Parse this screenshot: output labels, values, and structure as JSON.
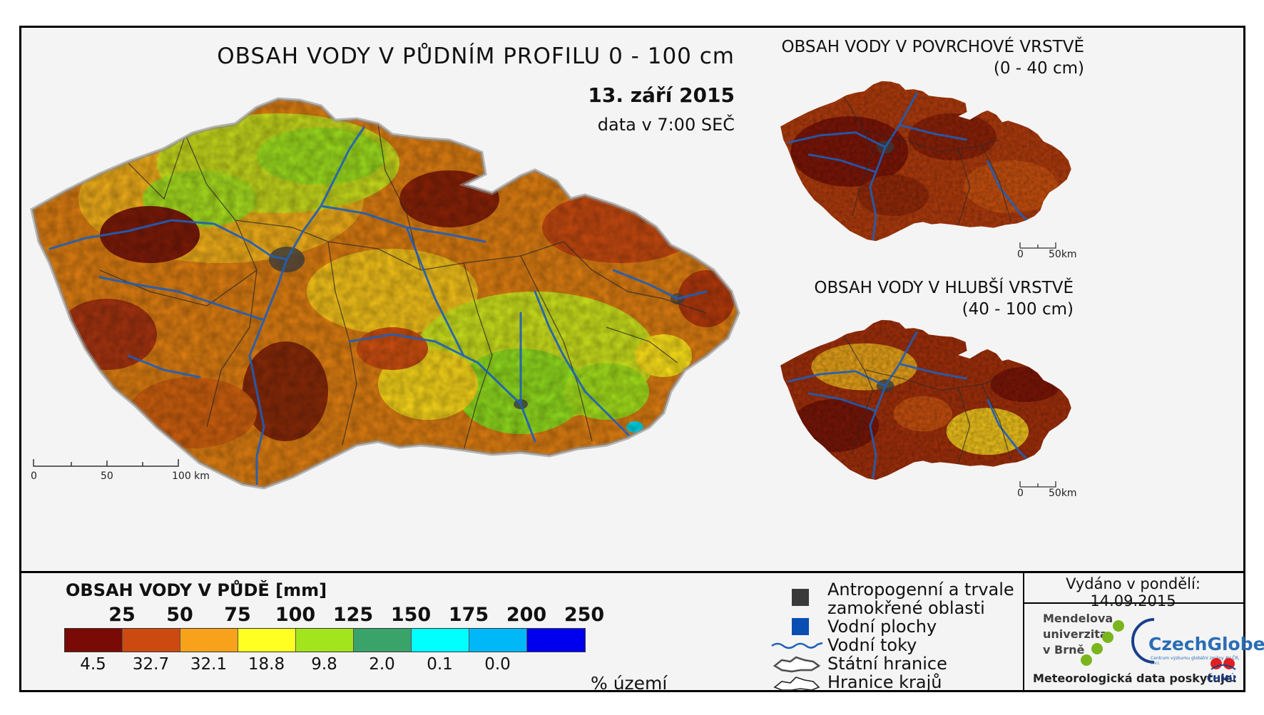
{
  "main_map": {
    "title": "OBSAH VODY V PŮDNÍM PROFILU 0 - 100 cm",
    "date": "13. září 2015",
    "subtitle": "data v 7:00 SEČ",
    "scale_labels": [
      "0",
      "50",
      "100 km"
    ]
  },
  "inset_top": {
    "title_line1": "OBSAH VODY V POVRCHOVÉ VRSTVĚ",
    "title_line2": "(0 - 40 cm)",
    "scale_labels": [
      "0",
      "50km"
    ]
  },
  "inset_bottom": {
    "title_line1": "OBSAH VODY V HLUBŠÍ VRSTVĚ",
    "title_line2": "(40 - 100 cm)",
    "scale_labels": [
      "0",
      "50km"
    ]
  },
  "legend": {
    "title": "OBSAH VODY V PŮDĚ [mm]",
    "class_breaks": [
      "25",
      "50",
      "75",
      "100",
      "125",
      "150",
      "175",
      "200",
      "250"
    ],
    "colors": [
      "#7a0a05",
      "#cc4a10",
      "#f7a21a",
      "#ffff22",
      "#a3e51c",
      "#3aa36a",
      "#00ffff",
      "#00b7f7",
      "#0000ee"
    ],
    "percentages": [
      "4.5",
      "32.7",
      "32.1",
      "18.8",
      "9.8",
      "2.0",
      "0.1",
      "0.0"
    ],
    "percent_unit": "% území"
  },
  "symbols": {
    "anthropogenic": "Antropogenní a trvale zamokřené oblasti",
    "anthropogenic_line1": "Antropogenní a trvale",
    "anthropogenic_line2": "zamokřené oblasti",
    "water_bodies": "Vodní plochy",
    "rivers": "Vodní toky",
    "state_border": "Státní hranice",
    "region_border": "Hranice krajů"
  },
  "footer": {
    "issued": "Vydáno v pondělí: 14.09.2015",
    "institution_line1": "Mendelova",
    "institution_line2": "univerzita",
    "institution_line3": "v Brně",
    "partner": "CzechGlobe",
    "partner_sub": "Centrum výzkumu globální změny AV ČR, v.v.i.",
    "provider": "Meteorologická data poskytuje:",
    "provider_org": "ČHMÚ"
  }
}
